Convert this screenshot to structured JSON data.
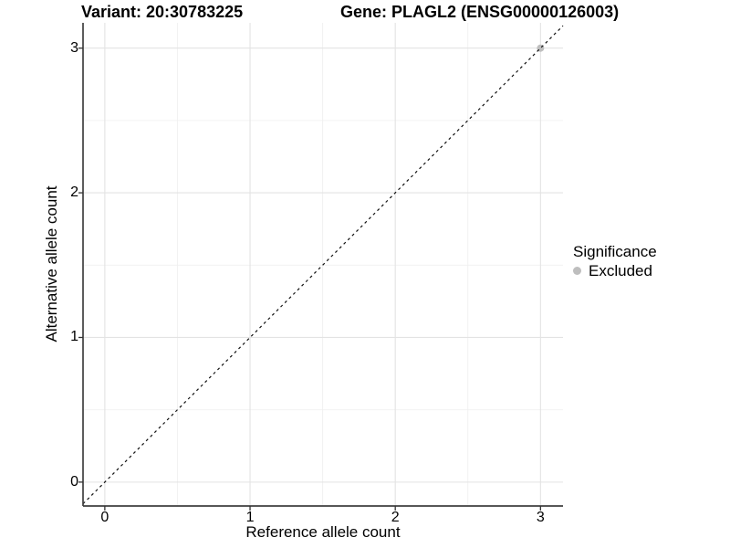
{
  "header": {
    "variant_title": "Variant: 20:30783225",
    "gene_title": "Gene: PLAGL2 (ENSG00000126003)"
  },
  "legend": {
    "title": "Significance",
    "items": [
      {
        "label": "Excluded",
        "color": "#bebebe"
      }
    ]
  },
  "chart_data": {
    "type": "scatter",
    "title": "",
    "xlabel": "Reference allele count",
    "ylabel": "Alternative allele count",
    "xlim": [
      -0.15,
      3.155
    ],
    "ylim": [
      -0.165,
      3.175
    ],
    "x_ticks": [
      0,
      1,
      2,
      3
    ],
    "y_ticks": [
      0,
      1,
      2,
      3
    ],
    "x_minor_ticks": [
      0.5,
      1.5,
      2.5
    ],
    "y_minor_ticks": [
      0.5,
      1.5,
      2.5
    ],
    "grid": true,
    "legend_position": "right",
    "series": [
      {
        "name": "Excluded",
        "color": "#bebebe",
        "point_radius": 4,
        "points": [
          {
            "x": 3,
            "y": 3
          }
        ]
      }
    ],
    "reference_line": {
      "type": "identity",
      "slope": 1,
      "intercept": 0,
      "style": "dashed",
      "color": "#111111"
    }
  },
  "colors": {
    "background": "#ffffff",
    "text": "#000000",
    "grid_major": "#e3e3e3",
    "grid_minor": "#f0f0f0",
    "axis_line": "#3f3f3f",
    "tick_mark": "#333333"
  }
}
